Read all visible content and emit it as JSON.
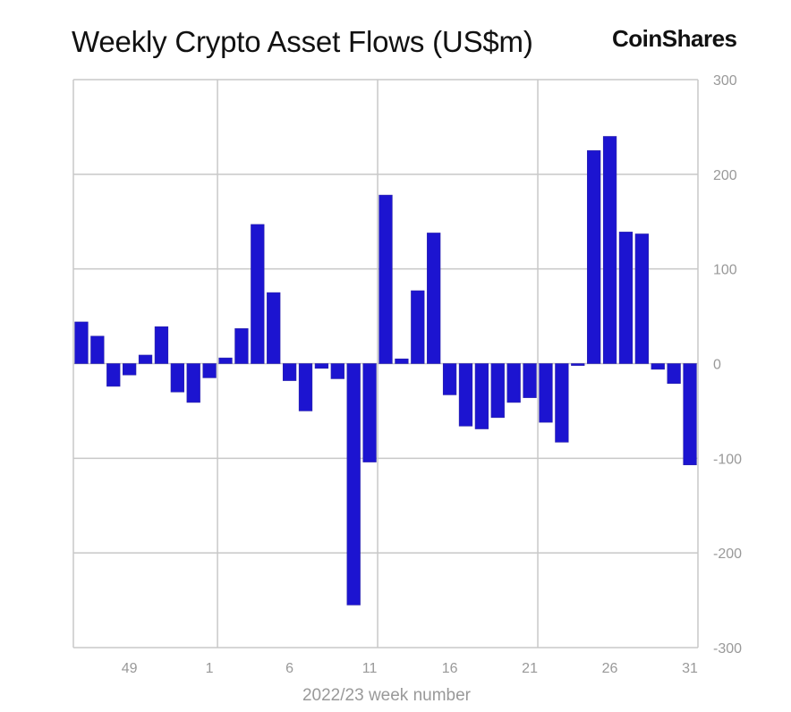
{
  "logo_text": "CoinShares",
  "chart_data": {
    "type": "bar",
    "title": "Weekly Crypto Asset Flows (US$m)",
    "xlabel": "2022/23 week number",
    "ylabel": "",
    "ylim": [
      -300,
      300
    ],
    "yticks": [
      300,
      200,
      100,
      0,
      -100,
      -200,
      -300
    ],
    "y_axis_position": "right",
    "grid": true,
    "bar_color": "#1c14d0",
    "xticks": [
      {
        "index": 3,
        "label": "49"
      },
      {
        "index": 8,
        "label": "1"
      },
      {
        "index": 13,
        "label": "6"
      },
      {
        "index": 18,
        "label": "11"
      },
      {
        "index": 23,
        "label": "16"
      },
      {
        "index": 28,
        "label": "21"
      },
      {
        "index": 33,
        "label": "26"
      },
      {
        "index": 38,
        "label": "31"
      }
    ],
    "values": [
      44,
      29,
      -24,
      -12,
      9,
      39,
      -30,
      -41,
      -15,
      6,
      37,
      147,
      75,
      -18,
      -50,
      -5,
      -16,
      -255,
      -104,
      178,
      5,
      77,
      138,
      -33,
      -66,
      -69,
      -57,
      -41,
      -36,
      -62,
      -83,
      -2,
      225,
      240,
      139,
      137,
      -6,
      -21,
      -107
    ]
  }
}
